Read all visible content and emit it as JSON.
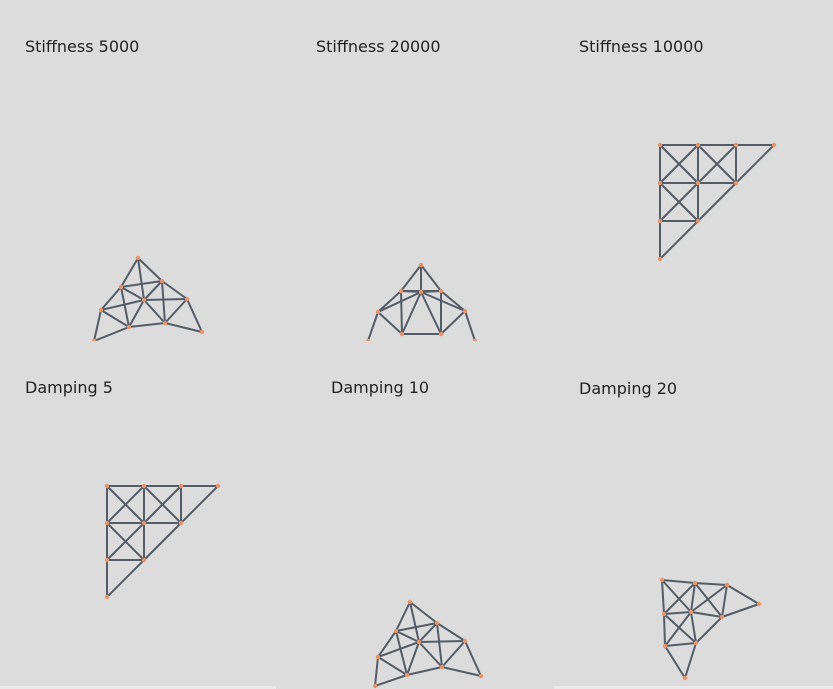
{
  "panels": [
    {
      "label": "Stiffness 5000"
    },
    {
      "label": "Stiffness 20000"
    },
    {
      "label": "Stiffness 10000"
    },
    {
      "label": "Damping 5"
    },
    {
      "label": "Damping 10"
    },
    {
      "label": "Damping 20"
    }
  ],
  "colors": {
    "background": "#dcdcdc",
    "beam": "#545c68",
    "node": "#e8946a"
  }
}
